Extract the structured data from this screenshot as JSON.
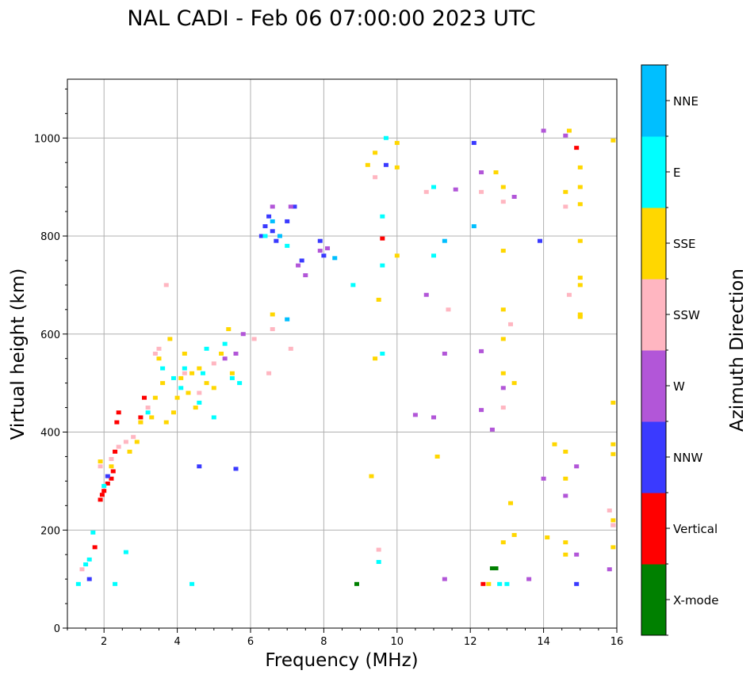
{
  "chart_data": {
    "type": "scatter",
    "title": "NAL CADI - Feb 06 07:00:00 2023 UTC",
    "xlabel": "Frequency (MHz)",
    "ylabel": "Virtual height (km)",
    "xlim": [
      1,
      16
    ],
    "ylim": [
      0,
      1120
    ],
    "xticks": [
      2,
      4,
      6,
      8,
      10,
      12,
      14,
      16
    ],
    "yticks": [
      0,
      200,
      400,
      600,
      800,
      1000
    ],
    "grid": true,
    "colorbar": {
      "label": "Azimuth Direction",
      "categories": [
        {
          "name": "X-mode",
          "color": "#008000"
        },
        {
          "name": "Vertical",
          "color": "#ff0000"
        },
        {
          "name": "NNW",
          "color": "#3a3aff"
        },
        {
          "name": "W",
          "color": "#b256d8"
        },
        {
          "name": "SSW",
          "color": "#ffb6c1"
        },
        {
          "name": "SSE",
          "color": "#ffd700"
        },
        {
          "name": "E",
          "color": "#00ffff"
        },
        {
          "name": "NNE",
          "color": "#00bfff"
        }
      ]
    },
    "series": [
      {
        "name": "X-mode",
        "points": [
          [
            8.9,
            90
          ],
          [
            12.6,
            122
          ],
          [
            12.7,
            122
          ]
        ]
      },
      {
        "name": "Vertical",
        "points": [
          [
            1.75,
            165
          ],
          [
            1.9,
            262
          ],
          [
            1.95,
            272
          ],
          [
            2.0,
            280
          ],
          [
            2.1,
            295
          ],
          [
            2.2,
            305
          ],
          [
            2.25,
            320
          ],
          [
            2.3,
            360
          ],
          [
            2.35,
            420
          ],
          [
            2.4,
            440
          ],
          [
            3.0,
            430
          ],
          [
            3.1,
            470
          ],
          [
            9.6,
            795
          ],
          [
            12.35,
            90
          ],
          [
            14.9,
            980
          ]
        ]
      },
      {
        "name": "NNW",
        "points": [
          [
            1.6,
            100
          ],
          [
            2.1,
            310
          ],
          [
            4.6,
            330
          ],
          [
            5.6,
            325
          ],
          [
            6.3,
            800
          ],
          [
            6.4,
            820
          ],
          [
            6.5,
            840
          ],
          [
            6.6,
            810
          ],
          [
            6.7,
            790
          ],
          [
            7.0,
            830
          ],
          [
            7.2,
            860
          ],
          [
            7.4,
            750
          ],
          [
            7.9,
            790
          ],
          [
            8.0,
            760
          ],
          [
            9.7,
            945
          ],
          [
            13.9,
            790
          ],
          [
            14.9,
            90
          ],
          [
            12.1,
            990
          ]
        ]
      },
      {
        "name": "W",
        "points": [
          [
            5.3,
            550
          ],
          [
            5.6,
            560
          ],
          [
            5.8,
            600
          ],
          [
            6.6,
            860
          ],
          [
            7.1,
            860
          ],
          [
            7.3,
            740
          ],
          [
            7.5,
            720
          ],
          [
            7.9,
            770
          ],
          [
            8.1,
            775
          ],
          [
            10.5,
            435
          ],
          [
            10.8,
            680
          ],
          [
            11.0,
            430
          ],
          [
            11.3,
            560
          ],
          [
            11.3,
            100
          ],
          [
            12.3,
            565
          ],
          [
            12.3,
            445
          ],
          [
            12.6,
            405
          ],
          [
            12.9,
            490
          ],
          [
            13.2,
            880
          ],
          [
            14.0,
            305
          ],
          [
            14.6,
            270
          ],
          [
            14.9,
            330
          ],
          [
            14.9,
            150
          ],
          [
            15.8,
            120
          ],
          [
            15.9,
            210
          ],
          [
            13.6,
            100
          ],
          [
            11.6,
            895
          ],
          [
            12.3,
            930
          ],
          [
            14.6,
            1005
          ],
          [
            14.0,
            1015
          ]
        ]
      },
      {
        "name": "SSW",
        "points": [
          [
            1.4,
            120
          ],
          [
            1.9,
            330
          ],
          [
            2.2,
            345
          ],
          [
            2.4,
            370
          ],
          [
            2.6,
            380
          ],
          [
            2.8,
            390
          ],
          [
            3.0,
            420
          ],
          [
            3.2,
            450
          ],
          [
            3.4,
            560
          ],
          [
            3.5,
            570
          ],
          [
            3.7,
            700
          ],
          [
            4.2,
            520
          ],
          [
            4.6,
            480
          ],
          [
            5.0,
            540
          ],
          [
            6.1,
            590
          ],
          [
            6.5,
            520
          ],
          [
            6.6,
            610
          ],
          [
            7.1,
            570
          ],
          [
            9.5,
            160
          ],
          [
            9.4,
            920
          ],
          [
            10.8,
            890
          ],
          [
            11.4,
            650
          ],
          [
            12.3,
            890
          ],
          [
            12.9,
            450
          ],
          [
            12.9,
            870
          ],
          [
            13.1,
            620
          ],
          [
            15.8,
            240
          ],
          [
            15.9,
            210
          ],
          [
            14.6,
            860
          ],
          [
            14.7,
            680
          ]
        ]
      },
      {
        "name": "SSE",
        "points": [
          [
            1.9,
            340
          ],
          [
            2.2,
            330
          ],
          [
            2.7,
            360
          ],
          [
            2.9,
            380
          ],
          [
            3.0,
            420
          ],
          [
            3.3,
            430
          ],
          [
            3.4,
            470
          ],
          [
            3.5,
            550
          ],
          [
            3.6,
            500
          ],
          [
            3.7,
            420
          ],
          [
            3.8,
            590
          ],
          [
            3.9,
            440
          ],
          [
            4.0,
            470
          ],
          [
            4.1,
            510
          ],
          [
            4.2,
            560
          ],
          [
            4.3,
            480
          ],
          [
            4.4,
            520
          ],
          [
            4.5,
            450
          ],
          [
            4.6,
            530
          ],
          [
            4.8,
            500
          ],
          [
            5.0,
            490
          ],
          [
            5.2,
            560
          ],
          [
            5.4,
            610
          ],
          [
            5.5,
            520
          ],
          [
            6.6,
            640
          ],
          [
            9.2,
            945
          ],
          [
            9.3,
            310
          ],
          [
            9.4,
            970
          ],
          [
            9.4,
            550
          ],
          [
            9.5,
            670
          ],
          [
            10.0,
            940
          ],
          [
            10.0,
            990
          ],
          [
            10.0,
            760
          ],
          [
            11.1,
            350
          ],
          [
            12.5,
            90
          ],
          [
            12.7,
            930
          ],
          [
            12.9,
            900
          ],
          [
            12.9,
            770
          ],
          [
            12.9,
            650
          ],
          [
            12.9,
            590
          ],
          [
            12.9,
            520
          ],
          [
            12.9,
            175
          ],
          [
            13.1,
            255
          ],
          [
            13.2,
            500
          ],
          [
            13.2,
            190
          ],
          [
            14.1,
            185
          ],
          [
            14.3,
            375
          ],
          [
            14.6,
            360
          ],
          [
            14.6,
            305
          ],
          [
            14.6,
            175
          ],
          [
            14.6,
            150
          ],
          [
            14.6,
            890
          ],
          [
            14.7,
            1015
          ],
          [
            15.0,
            940
          ],
          [
            15.0,
            865
          ],
          [
            15.0,
            790
          ],
          [
            15.0,
            715
          ],
          [
            15.0,
            640
          ],
          [
            15.0,
            635
          ],
          [
            15.0,
            900
          ],
          [
            15.0,
            700
          ],
          [
            15.9,
            460
          ],
          [
            15.9,
            375
          ],
          [
            15.9,
            355
          ],
          [
            15.9,
            165
          ],
          [
            15.9,
            995
          ],
          [
            15.9,
            220
          ]
        ]
      },
      {
        "name": "E",
        "points": [
          [
            1.3,
            90
          ],
          [
            1.5,
            130
          ],
          [
            1.6,
            140
          ],
          [
            1.7,
            195
          ],
          [
            2.0,
            290
          ],
          [
            2.3,
            90
          ],
          [
            2.6,
            155
          ],
          [
            3.2,
            440
          ],
          [
            3.6,
            530
          ],
          [
            3.9,
            510
          ],
          [
            4.1,
            490
          ],
          [
            4.2,
            530
          ],
          [
            4.4,
            90
          ],
          [
            4.6,
            460
          ],
          [
            4.7,
            520
          ],
          [
            4.8,
            570
          ],
          [
            5.0,
            430
          ],
          [
            5.3,
            580
          ],
          [
            5.5,
            510
          ],
          [
            5.7,
            500
          ],
          [
            6.4,
            800
          ],
          [
            7.0,
            780
          ],
          [
            8.8,
            700
          ],
          [
            9.5,
            135
          ],
          [
            9.6,
            840
          ],
          [
            9.6,
            740
          ],
          [
            9.6,
            560
          ],
          [
            9.7,
            1000
          ],
          [
            11.0,
            760
          ],
          [
            11.0,
            900
          ],
          [
            12.8,
            90
          ],
          [
            13.0,
            90
          ]
        ]
      },
      {
        "name": "NNE",
        "points": [
          [
            6.6,
            830
          ],
          [
            6.8,
            800
          ],
          [
            7.0,
            630
          ],
          [
            8.3,
            755
          ],
          [
            12.1,
            820
          ],
          [
            11.3,
            790
          ]
        ]
      }
    ]
  }
}
